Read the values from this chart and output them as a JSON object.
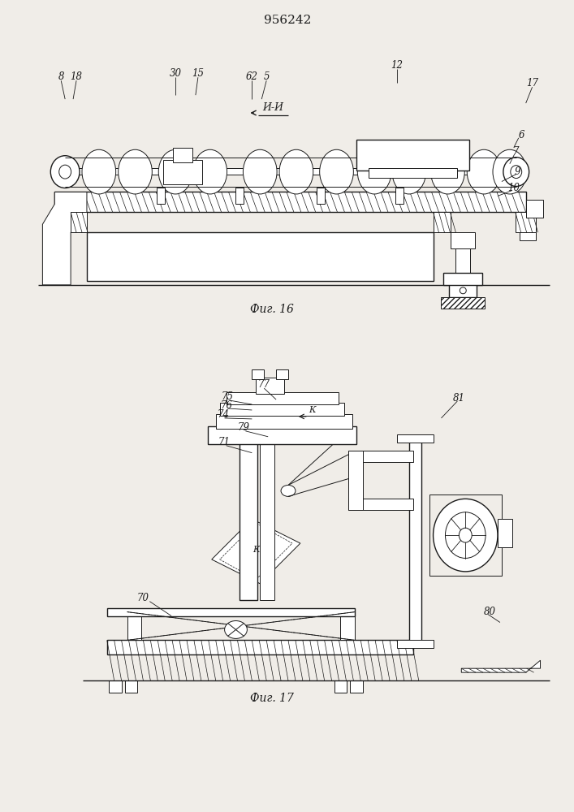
{
  "title": "956242",
  "fig16_label": "Фиг. 16",
  "fig17_label": "Фиг. 17",
  "background_color": "#f0ede8",
  "line_color": "#1a1a1a"
}
